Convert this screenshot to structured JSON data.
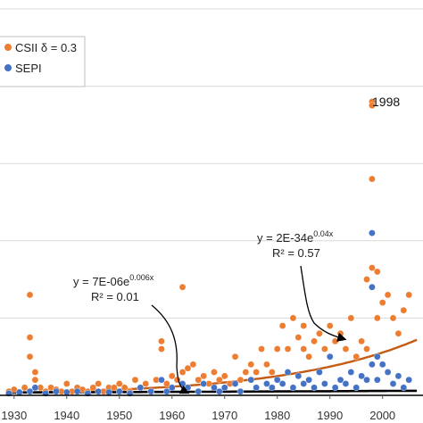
{
  "chart_data": {
    "type": "scatter",
    "x_ticks": [
      "1930",
      "1940",
      "1950",
      "1960",
      "1970",
      "1980",
      "1990",
      "2000"
    ],
    "xlim": [
      1928,
      2007
    ],
    "ylim": [
      0,
      100
    ],
    "grid": "horizontal",
    "legend_placement": "top-left",
    "colors": {
      "csii": "#ED7D31",
      "sepi": "#4472C4",
      "grid": "#d9d9d9",
      "axis": "#000000"
    },
    "series": [
      {
        "name": "CSII δ = 0.3",
        "color": "#ED7D31",
        "points": [
          [
            1929,
            1
          ],
          [
            1930,
            1.5
          ],
          [
            1931,
            0.8
          ],
          [
            1932,
            2
          ],
          [
            1933,
            26
          ],
          [
            1933,
            15
          ],
          [
            1933,
            10
          ],
          [
            1934,
            6
          ],
          [
            1934,
            4
          ],
          [
            1935,
            2
          ],
          [
            1936,
            1
          ],
          [
            1937,
            2
          ],
          [
            1938,
            1.5
          ],
          [
            1939,
            1
          ],
          [
            1940,
            3
          ],
          [
            1941,
            1
          ],
          [
            1942,
            2
          ],
          [
            1943,
            1.5
          ],
          [
            1944,
            1
          ],
          [
            1945,
            2
          ],
          [
            1946,
            3
          ],
          [
            1947,
            1
          ],
          [
            1948,
            2
          ],
          [
            1949,
            2
          ],
          [
            1950,
            3
          ],
          [
            1951,
            2
          ],
          [
            1952,
            1
          ],
          [
            1953,
            4
          ],
          [
            1954,
            2
          ],
          [
            1955,
            3
          ],
          [
            1956,
            1
          ],
          [
            1957,
            4
          ],
          [
            1958,
            12
          ],
          [
            1958,
            14
          ],
          [
            1959,
            3
          ],
          [
            1960,
            5
          ],
          [
            1961,
            4
          ],
          [
            1962,
            6
          ],
          [
            1962,
            28
          ],
          [
            1963,
            7
          ],
          [
            1964,
            8
          ],
          [
            1965,
            4
          ],
          [
            1966,
            5
          ],
          [
            1967,
            3
          ],
          [
            1968,
            6
          ],
          [
            1969,
            4
          ],
          [
            1970,
            5
          ],
          [
            1971,
            3
          ],
          [
            1972,
            10
          ],
          [
            1973,
            4
          ],
          [
            1974,
            6
          ],
          [
            1975,
            8
          ],
          [
            1976,
            6
          ],
          [
            1977,
            12
          ],
          [
            1978,
            8
          ],
          [
            1979,
            6
          ],
          [
            1980,
            12
          ],
          [
            1981,
            18
          ],
          [
            1982,
            12
          ],
          [
            1983,
            20
          ],
          [
            1984,
            15
          ],
          [
            1985,
            12
          ],
          [
            1985,
            18
          ],
          [
            1986,
            10
          ],
          [
            1987,
            14
          ],
          [
            1988,
            16
          ],
          [
            1989,
            12
          ],
          [
            1990,
            18
          ],
          [
            1991,
            14
          ],
          [
            1992,
            16
          ],
          [
            1993,
            12
          ],
          [
            1994,
            20
          ],
          [
            1995,
            10
          ],
          [
            1996,
            14
          ],
          [
            1997,
            12
          ],
          [
            1997,
            30
          ],
          [
            1998,
            76
          ],
          [
            1998,
            75
          ],
          [
            1998,
            56
          ],
          [
            1998,
            33
          ],
          [
            1998,
            28
          ],
          [
            1999,
            20
          ],
          [
            1999,
            32
          ],
          [
            2000,
            24
          ],
          [
            2001,
            26
          ],
          [
            2002,
            20
          ],
          [
            2003,
            16
          ],
          [
            2004,
            22
          ],
          [
            2005,
            26
          ]
        ]
      },
      {
        "name": "SEPI",
        "color": "#4472C4",
        "points": [
          [
            1929,
            0.5
          ],
          [
            1931,
            0.8
          ],
          [
            1933,
            1
          ],
          [
            1934,
            2
          ],
          [
            1936,
            0.5
          ],
          [
            1938,
            1
          ],
          [
            1940,
            0.8
          ],
          [
            1942,
            1
          ],
          [
            1944,
            0.5
          ],
          [
            1946,
            1
          ],
          [
            1948,
            0.8
          ],
          [
            1950,
            1
          ],
          [
            1952,
            0.5
          ],
          [
            1954,
            2
          ],
          [
            1956,
            1
          ],
          [
            1958,
            4
          ],
          [
            1959,
            1
          ],
          [
            1960,
            2
          ],
          [
            1962,
            3
          ],
          [
            1963,
            2
          ],
          [
            1965,
            1
          ],
          [
            1966,
            3
          ],
          [
            1968,
            2
          ],
          [
            1969,
            1
          ],
          [
            1970,
            2
          ],
          [
            1972,
            3
          ],
          [
            1973,
            1
          ],
          [
            1975,
            4
          ],
          [
            1976,
            2
          ],
          [
            1978,
            3
          ],
          [
            1979,
            2
          ],
          [
            1980,
            4
          ],
          [
            1981,
            3
          ],
          [
            1982,
            6
          ],
          [
            1983,
            2
          ],
          [
            1984,
            5
          ],
          [
            1985,
            3
          ],
          [
            1986,
            4
          ],
          [
            1987,
            2
          ],
          [
            1988,
            6
          ],
          [
            1989,
            3
          ],
          [
            1990,
            10
          ],
          [
            1991,
            2
          ],
          [
            1992,
            4
          ],
          [
            1993,
            3
          ],
          [
            1994,
            6
          ],
          [
            1995,
            2
          ],
          [
            1996,
            5
          ],
          [
            1997,
            4
          ],
          [
            1998,
            42
          ],
          [
            1998,
            28
          ],
          [
            1998,
            8
          ],
          [
            1999,
            10
          ],
          [
            1999,
            4
          ],
          [
            2000,
            8
          ],
          [
            2001,
            6
          ],
          [
            2002,
            3
          ],
          [
            2003,
            5
          ],
          [
            2004,
            2
          ],
          [
            2005,
            4
          ]
        ]
      }
    ],
    "trendlines": [
      {
        "equation": "y = 2E-34e",
        "exponent": "0.04x",
        "r2": "R² = 0.57",
        "color": "#C55A11",
        "a": 2e-34,
        "b": 0.04
      },
      {
        "equation": "y = 7E-06e",
        "exponent": "0.006x",
        "r2": "R² = 0.01",
        "color": "#000000",
        "a": 7e-06,
        "b": 0.006
      }
    ],
    "annotations": [
      "1998"
    ]
  }
}
